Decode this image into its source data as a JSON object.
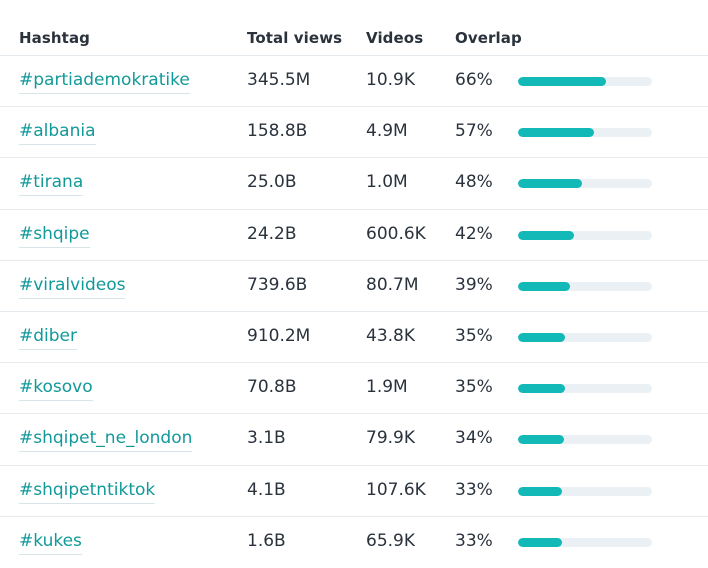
{
  "header": {
    "hashtag": "Hashtag",
    "total_views": "Total views",
    "videos": "Videos",
    "overlap": "Overlap"
  },
  "colors": {
    "accent": "#13b9b7",
    "link": "#12999a",
    "track": "#eaf0f4"
  },
  "rows": [
    {
      "hashtag": "#partiademokratike",
      "total_views": "345.5M",
      "videos": "10.9K",
      "overlap": "66%",
      "overlap_value": 66
    },
    {
      "hashtag": "#albania",
      "total_views": "158.8B",
      "videos": "4.9M",
      "overlap": "57%",
      "overlap_value": 57
    },
    {
      "hashtag": "#tirana",
      "total_views": "25.0B",
      "videos": "1.0M",
      "overlap": "48%",
      "overlap_value": 48
    },
    {
      "hashtag": "#shqipe",
      "total_views": "24.2B",
      "videos": "600.6K",
      "overlap": "42%",
      "overlap_value": 42
    },
    {
      "hashtag": "#viralvideos",
      "total_views": "739.6B",
      "videos": "80.7M",
      "overlap": "39%",
      "overlap_value": 39
    },
    {
      "hashtag": "#diber",
      "total_views": "910.2M",
      "videos": "43.8K",
      "overlap": "35%",
      "overlap_value": 35
    },
    {
      "hashtag": "#kosovo",
      "total_views": "70.8B",
      "videos": "1.9M",
      "overlap": "35%",
      "overlap_value": 35
    },
    {
      "hashtag": "#shqipet_ne_london",
      "total_views": "3.1B",
      "videos": "79.9K",
      "overlap": "34%",
      "overlap_value": 34
    },
    {
      "hashtag": "#shqipetntiktok",
      "total_views": "4.1B",
      "videos": "107.6K",
      "overlap": "33%",
      "overlap_value": 33
    },
    {
      "hashtag": "#kukes",
      "total_views": "1.6B",
      "videos": "65.9K",
      "overlap": "33%",
      "overlap_value": 33
    }
  ]
}
